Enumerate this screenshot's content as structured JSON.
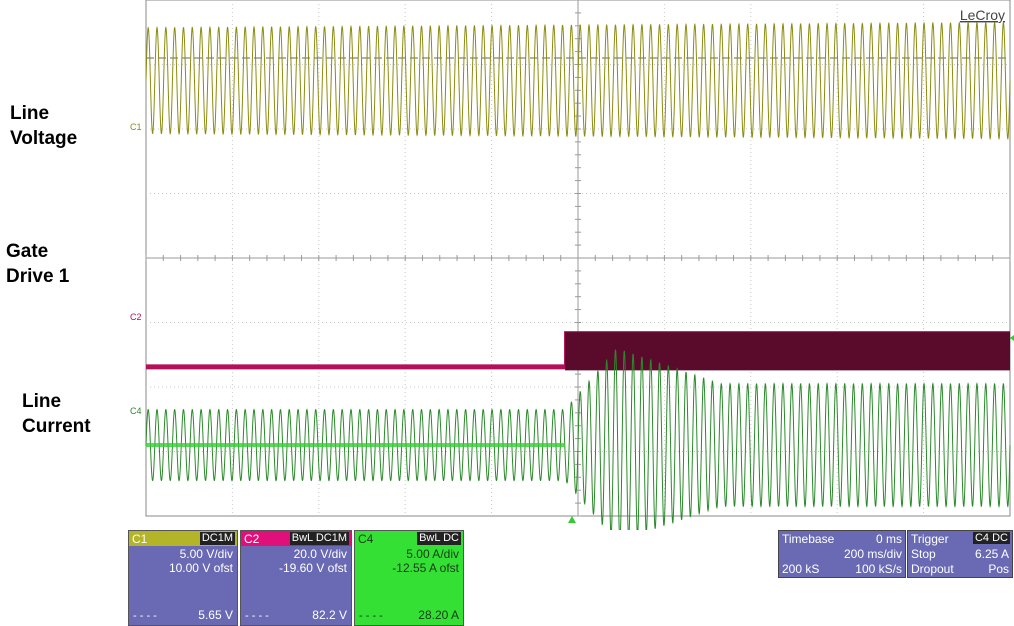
{
  "brand": "LeCroy",
  "labels": {
    "line_voltage": [
      "Line",
      "Voltage"
    ],
    "gate_drive": [
      "Gate",
      "Drive 1"
    ],
    "line_current": [
      "Line",
      "Current"
    ]
  },
  "channels": {
    "c1": {
      "name": "C1",
      "coupling": "DC1M",
      "vdiv": "5.00 V/div",
      "offset": "10.00 V ofst",
      "dash": "- - - -",
      "measure": "5.65 V",
      "color": "#8c8c10",
      "header_color": "#b4b428",
      "body_color": "#6a6ab4"
    },
    "c2": {
      "name": "C2",
      "coupling": "BwL DC1M",
      "vdiv": "20.0 V/div",
      "offset": "-19.60 V ofst",
      "dash": "- - - -",
      "measure": "82.2 V",
      "color": "#b4105a",
      "header_color": "#e0107a",
      "body_color": "#6a6ab4"
    },
    "c4": {
      "name": "C4",
      "coupling": "BwL DC",
      "vdiv": "5.00 A/div",
      "offset": "-12.55 A ofst",
      "dash": "- - - -",
      "measure": "28.20 A",
      "color": "#2a8a2a",
      "header_color": "#33e033",
      "body_color": "#33e033"
    }
  },
  "timebase": {
    "label": "Timebase",
    "delay": "0 ms",
    "tdiv": "200 ms/div",
    "samples": "200 kS",
    "rate": "100 kS/s"
  },
  "trigger": {
    "label": "Trigger",
    "source": "C4 DC",
    "mode": "Stop",
    "level": "6.25 A",
    "type": "Dropout",
    "slope": "Pos"
  },
  "trace_labels": {
    "c1": "C1",
    "c2": "C2",
    "c4": "C4"
  },
  "chart_data": {
    "type": "line",
    "grid": true,
    "x_divisions": 10,
    "y_divisions": 8,
    "series": [
      {
        "name": "C1",
        "kind": "sine",
        "cycles": 98,
        "amplitude_div_before": 0.82,
        "amplitude_div_after": 0.9,
        "center_div": 6.75
      },
      {
        "name": "C2",
        "kind": "step",
        "low_div": 2.32,
        "high_div": 2.85,
        "step_at_div": 4.85
      },
      {
        "name": "C4",
        "kind": "sine",
        "cycles": 98,
        "amplitude_div_before": 0.55,
        "amplitude_div_peak": 1.5,
        "amplitude_div_after": 0.95,
        "center_div": 1.1,
        "step_at_div": 4.85
      }
    ]
  }
}
